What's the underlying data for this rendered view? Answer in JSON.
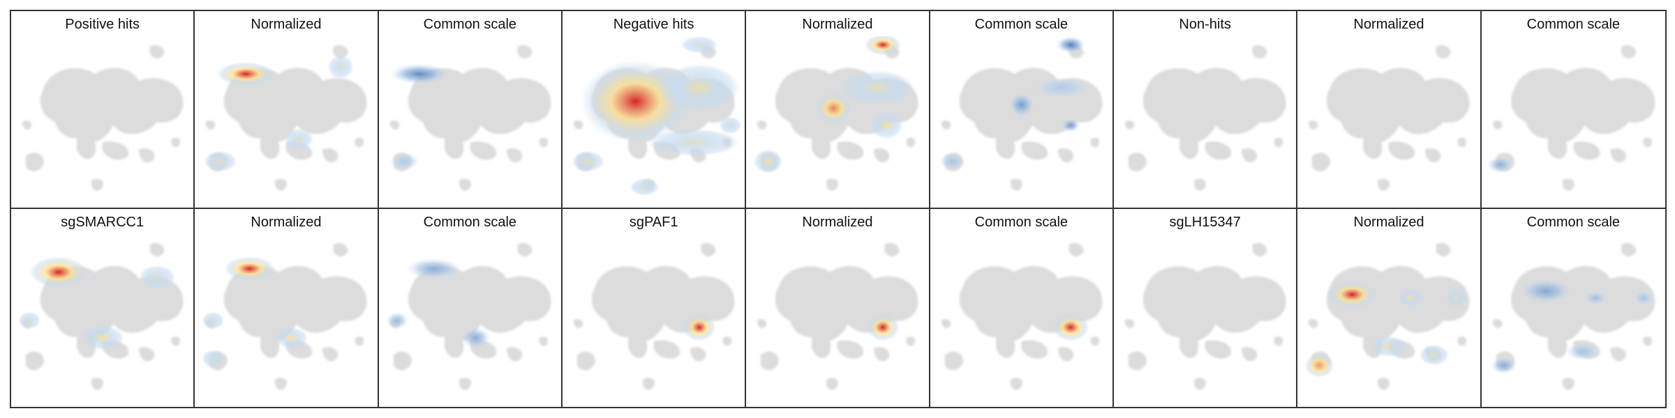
{
  "chart_data": {
    "type": "heatmap",
    "layout": {
      "rows": 2,
      "cols": 9
    },
    "palette": {
      "background_cells": "#dcdcdc",
      "normalized_low": "#c6dbef",
      "normalized_mid": "#fee08b",
      "normalized_high": "#d7191c",
      "common_low": "#c6dbef",
      "common_high": "#2c5fb0"
    },
    "panels": [
      {
        "title": "Positive hits",
        "scale": "none",
        "hotspots": []
      },
      {
        "title": "Normalized",
        "scale": "normalized",
        "hotspots": [
          {
            "x": 0.28,
            "y": 0.22,
            "w": 0.16,
            "h": 0.07,
            "intensity": 1.0
          },
          {
            "x": 0.14,
            "y": 0.73,
            "w": 0.09,
            "h": 0.06,
            "intensity": 0.3
          },
          {
            "x": 0.57,
            "y": 0.6,
            "w": 0.08,
            "h": 0.06,
            "intensity": 0.25
          },
          {
            "x": 0.8,
            "y": 0.18,
            "w": 0.07,
            "h": 0.07,
            "intensity": 0.2
          }
        ]
      },
      {
        "title": "Common scale",
        "scale": "common",
        "hotspots": [
          {
            "x": 0.22,
            "y": 0.22,
            "w": 0.16,
            "h": 0.06,
            "intensity": 0.7
          },
          {
            "x": 0.14,
            "y": 0.73,
            "w": 0.08,
            "h": 0.05,
            "intensity": 0.15
          }
        ]
      },
      {
        "title": "Negative hits",
        "scale": "normalized",
        "hotspots": [
          {
            "x": 0.4,
            "y": 0.38,
            "w": 0.3,
            "h": 0.24,
            "intensity": 1.0
          },
          {
            "x": 0.75,
            "y": 0.3,
            "w": 0.22,
            "h": 0.14,
            "intensity": 0.4
          },
          {
            "x": 0.72,
            "y": 0.62,
            "w": 0.25,
            "h": 0.08,
            "intensity": 0.25
          },
          {
            "x": 0.14,
            "y": 0.73,
            "w": 0.09,
            "h": 0.06,
            "intensity": 0.35
          },
          {
            "x": 0.75,
            "y": 0.05,
            "w": 0.1,
            "h": 0.05,
            "intensity": 0.2
          },
          {
            "x": 0.45,
            "y": 0.88,
            "w": 0.08,
            "h": 0.05,
            "intensity": 0.2
          },
          {
            "x": 0.92,
            "y": 0.52,
            "w": 0.06,
            "h": 0.05,
            "intensity": 0.2
          }
        ]
      },
      {
        "title": "Normalized",
        "scale": "normalized",
        "hotspots": [
          {
            "x": 0.75,
            "y": 0.05,
            "w": 0.1,
            "h": 0.06,
            "intensity": 1.0
          },
          {
            "x": 0.48,
            "y": 0.42,
            "w": 0.1,
            "h": 0.09,
            "intensity": 0.8
          },
          {
            "x": 0.77,
            "y": 0.52,
            "w": 0.09,
            "h": 0.08,
            "intensity": 0.6
          },
          {
            "x": 0.72,
            "y": 0.3,
            "w": 0.2,
            "h": 0.1,
            "intensity": 0.35
          },
          {
            "x": 0.12,
            "y": 0.73,
            "w": 0.08,
            "h": 0.07,
            "intensity": 0.5
          }
        ]
      },
      {
        "title": "Common scale",
        "scale": "common",
        "hotspots": [
          {
            "x": 0.77,
            "y": 0.05,
            "w": 0.08,
            "h": 0.05,
            "intensity": 0.8
          },
          {
            "x": 0.5,
            "y": 0.4,
            "w": 0.07,
            "h": 0.07,
            "intensity": 0.55
          },
          {
            "x": 0.77,
            "y": 0.52,
            "w": 0.05,
            "h": 0.04,
            "intensity": 0.55
          },
          {
            "x": 0.12,
            "y": 0.73,
            "w": 0.07,
            "h": 0.05,
            "intensity": 0.2
          },
          {
            "x": 0.72,
            "y": 0.3,
            "w": 0.15,
            "h": 0.06,
            "intensity": 0.15
          }
        ]
      },
      {
        "title": "Non-hits",
        "scale": "none",
        "hotspots": []
      },
      {
        "title": "Normalized",
        "scale": "normalized",
        "hotspots": []
      },
      {
        "title": "Common scale",
        "scale": "common",
        "hotspots": [
          {
            "x": 0.1,
            "y": 0.75,
            "w": 0.07,
            "h": 0.05,
            "intensity": 0.35
          }
        ]
      },
      {
        "title": "sgSMARCC1",
        "scale": "normalized",
        "hotspots": [
          {
            "x": 0.26,
            "y": 0.22,
            "w": 0.16,
            "h": 0.09,
            "intensity": 1.0
          },
          {
            "x": 0.5,
            "y": 0.6,
            "w": 0.12,
            "h": 0.07,
            "intensity": 0.5
          },
          {
            "x": 0.8,
            "y": 0.25,
            "w": 0.1,
            "h": 0.07,
            "intensity": 0.2
          },
          {
            "x": 0.1,
            "y": 0.5,
            "w": 0.06,
            "h": 0.05,
            "intensity": 0.2
          }
        ]
      },
      {
        "title": "Normalized",
        "scale": "normalized",
        "hotspots": [
          {
            "x": 0.3,
            "y": 0.2,
            "w": 0.14,
            "h": 0.07,
            "intensity": 1.0
          },
          {
            "x": 0.53,
            "y": 0.6,
            "w": 0.09,
            "h": 0.06,
            "intensity": 0.6
          },
          {
            "x": 0.1,
            "y": 0.5,
            "w": 0.06,
            "h": 0.05,
            "intensity": 0.2
          },
          {
            "x": 0.1,
            "y": 0.72,
            "w": 0.06,
            "h": 0.05,
            "intensity": 0.2
          }
        ]
      },
      {
        "title": "Common scale",
        "scale": "common",
        "hotspots": [
          {
            "x": 0.3,
            "y": 0.2,
            "w": 0.15,
            "h": 0.06,
            "intensity": 0.4
          },
          {
            "x": 0.53,
            "y": 0.6,
            "w": 0.08,
            "h": 0.06,
            "intensity": 0.45
          },
          {
            "x": 0.1,
            "y": 0.5,
            "w": 0.06,
            "h": 0.05,
            "intensity": 0.3
          }
        ]
      },
      {
        "title": "sgPAF1",
        "scale": "normalized",
        "hotspots": [
          {
            "x": 0.75,
            "y": 0.54,
            "w": 0.09,
            "h": 0.08,
            "intensity": 1.0
          }
        ]
      },
      {
        "title": "Normalized",
        "scale": "normalized",
        "hotspots": [
          {
            "x": 0.75,
            "y": 0.54,
            "w": 0.09,
            "h": 0.08,
            "intensity": 1.0
          }
        ]
      },
      {
        "title": "Common scale",
        "scale": "normalized",
        "hotspots": [
          {
            "x": 0.77,
            "y": 0.54,
            "w": 0.1,
            "h": 0.08,
            "intensity": 1.0
          }
        ]
      },
      {
        "title": "sgLH15347",
        "scale": "none",
        "hotspots": []
      },
      {
        "title": "Normalized",
        "scale": "normalized",
        "hotspots": [
          {
            "x": 0.3,
            "y": 0.35,
            "w": 0.14,
            "h": 0.08,
            "intensity": 1.0
          },
          {
            "x": 0.62,
            "y": 0.37,
            "w": 0.07,
            "h": 0.05,
            "intensity": 0.55
          },
          {
            "x": 0.87,
            "y": 0.37,
            "w": 0.06,
            "h": 0.05,
            "intensity": 0.4
          },
          {
            "x": 0.12,
            "y": 0.76,
            "w": 0.08,
            "h": 0.07,
            "intensity": 0.75
          },
          {
            "x": 0.5,
            "y": 0.65,
            "w": 0.1,
            "h": 0.06,
            "intensity": 0.4
          },
          {
            "x": 0.75,
            "y": 0.7,
            "w": 0.08,
            "h": 0.06,
            "intensity": 0.35
          }
        ]
      },
      {
        "title": "Common scale",
        "scale": "common",
        "hotspots": [
          {
            "x": 0.35,
            "y": 0.33,
            "w": 0.14,
            "h": 0.07,
            "intensity": 0.45
          },
          {
            "x": 0.62,
            "y": 0.37,
            "w": 0.06,
            "h": 0.04,
            "intensity": 0.25
          },
          {
            "x": 0.88,
            "y": 0.37,
            "w": 0.05,
            "h": 0.04,
            "intensity": 0.2
          },
          {
            "x": 0.12,
            "y": 0.76,
            "w": 0.07,
            "h": 0.05,
            "intensity": 0.4
          },
          {
            "x": 0.55,
            "y": 0.68,
            "w": 0.09,
            "h": 0.05,
            "intensity": 0.2
          }
        ]
      }
    ]
  }
}
